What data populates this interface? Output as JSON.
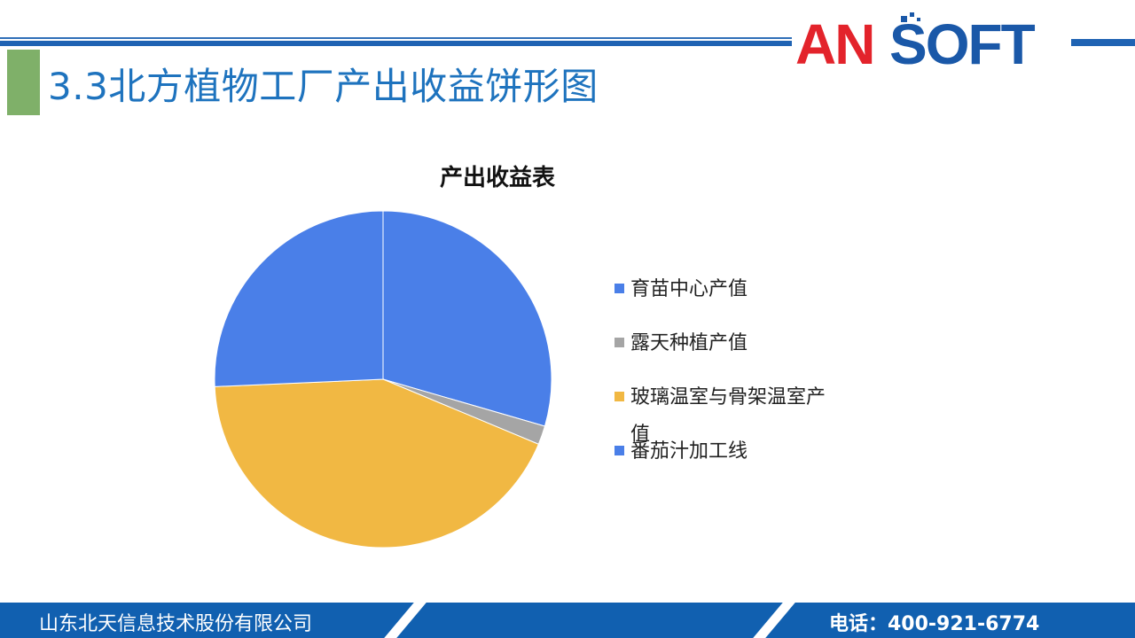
{
  "header": {
    "logo_text": "ANSOFT",
    "title": "3.3北方植物工厂产出收益饼形图"
  },
  "chart_data": {
    "type": "pie",
    "title": "产出收益表",
    "categories": [
      "育苗中心产值",
      "露天种植产值",
      "玻璃温室与骨架温室产值",
      "番茄汁加工线"
    ],
    "values": [
      29.5,
      1.8,
      43.0,
      25.7
    ],
    "colors": [
      "#4a7fe8",
      "#a5a5a5",
      "#f1b843",
      "#4a7fe8"
    ],
    "legend_position": "right"
  },
  "footer": {
    "company": "山东北天信息技术股份有限公司",
    "phone": "电话：400-921-6774"
  },
  "colors": {
    "brand_blue": "#1160b0",
    "title_blue": "#1e73be",
    "accent_green": "#7fb069",
    "logo_red": "#e3232b"
  }
}
